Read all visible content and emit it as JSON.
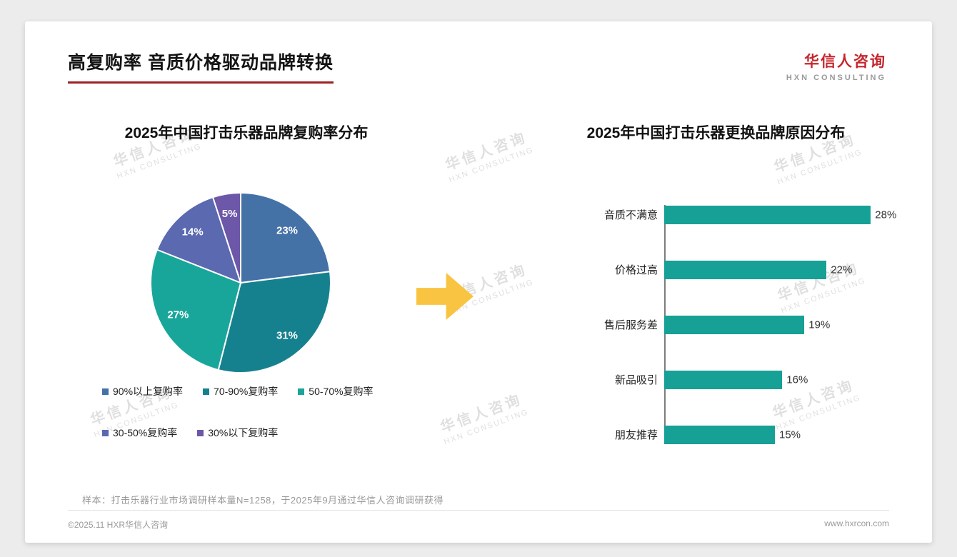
{
  "page": {
    "title": "高复购率 音质价格驱动品牌转换",
    "footnote": "样本：打击乐器行业市场调研样本量N=1258，于2025年9月通过华信人咨询调研获得",
    "footer_left": "©2025.11 HXR华信人咨询",
    "footer_right": "www.hxrcon.com"
  },
  "logo": {
    "name": "华信人咨询",
    "subtitle": "HXN CONSULTING"
  },
  "watermark": {
    "line1": "华信人咨询",
    "line2": "HXN CONSULTING"
  },
  "colors": {
    "accent_red": "#9e2025",
    "arrow_yellow": "#f9c441",
    "teal": "#17a096"
  },
  "chart_data": [
    {
      "type": "pie",
      "title": "2025年中国打击乐器品牌复购率分布",
      "labels": [
        "90%以上复购率",
        "70-90%复购率",
        "50-70%复购率",
        "30-50%复购率",
        "30%以下复购率"
      ],
      "values": [
        23,
        31,
        27,
        14,
        5
      ],
      "unit": "%",
      "colors": [
        "#4471a6",
        "#16818e",
        "#19a69a",
        "#5a69b0",
        "#6d57a8"
      ],
      "legend_position": "bottom",
      "start_angle_deg": -90,
      "direction": "clockwise"
    },
    {
      "type": "bar",
      "orientation": "horizontal",
      "title": "2025年中国打击乐器更换品牌原因分布",
      "categories": [
        "音质不满意",
        "价格过高",
        "售后服务差",
        "新品吸引",
        "朋友推荐"
      ],
      "values": [
        28,
        22,
        19,
        16,
        15
      ],
      "unit": "%",
      "bar_color": "#17a096",
      "xlim": [
        0,
        30
      ],
      "grid": false,
      "value_labels": "outside-end"
    }
  ]
}
